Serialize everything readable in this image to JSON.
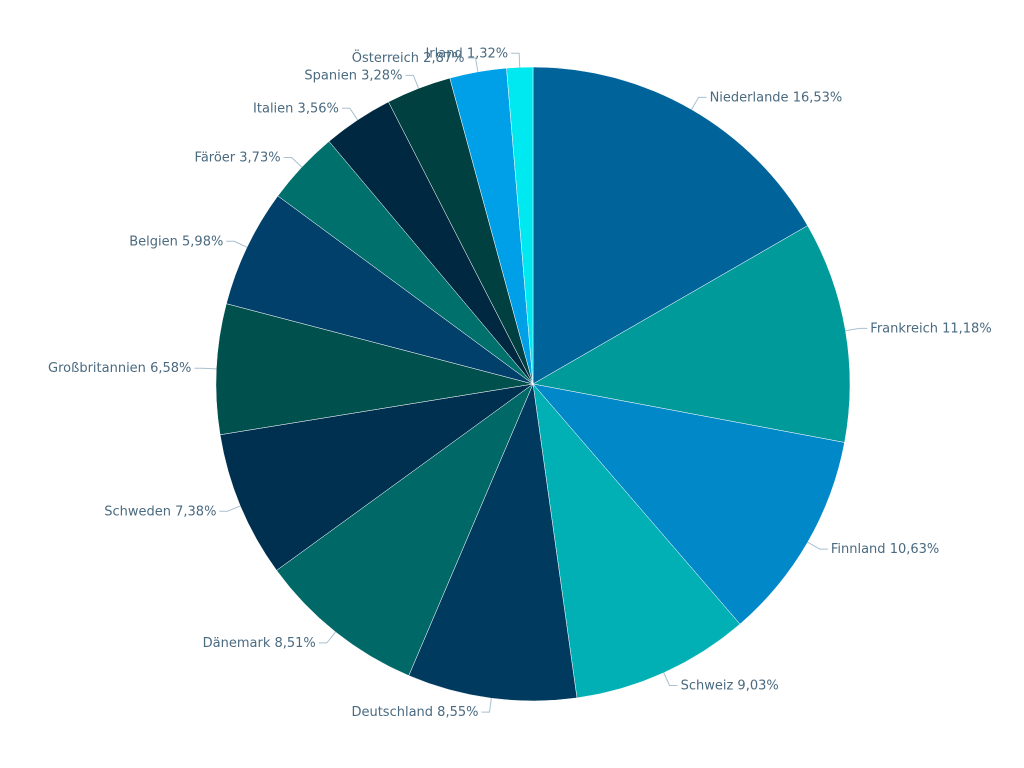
{
  "chart_data": {
    "type": "pie",
    "categories": [
      "Niederlande",
      "Frankreich",
      "Finnland",
      "Schweiz",
      "Deutschland",
      "Dänemark",
      "Schweden",
      "Großbritannien",
      "Belgien",
      "Färöer",
      "Italien",
      "Spanien",
      "Österreich",
      "Irland"
    ],
    "values": [
      16.53,
      11.18,
      10.63,
      9.03,
      8.55,
      8.51,
      7.38,
      6.58,
      5.98,
      3.73,
      3.56,
      3.28,
      2.87,
      1.32
    ],
    "value_labels": [
      "16,53%",
      "11,18%",
      "10,63%",
      "9,03%",
      "8,55%",
      "8,51%",
      "7,38%",
      "6,58%",
      "5,98%",
      "3,73%",
      "3,56%",
      "3,28%",
      "2,87%",
      "1,32%"
    ],
    "colors": [
      "#00649a",
      "#009a9a",
      "#0088c8",
      "#00b0b4",
      "#003a5e",
      "#006866",
      "#003050",
      "#00504e",
      "#00406a",
      "#00706c",
      "#002840",
      "#004040",
      "#00a0e8",
      "#00e8f0"
    ]
  }
}
